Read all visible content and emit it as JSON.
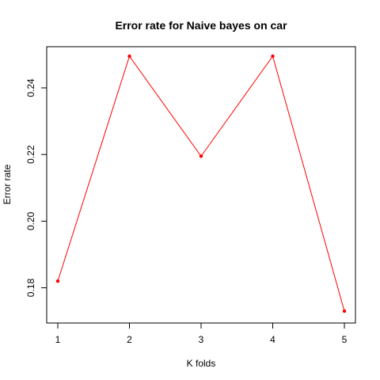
{
  "chart_data": {
    "type": "line",
    "title": "Error rate for Naive bayes on car",
    "xlabel": "K folds",
    "ylabel": "Error rate",
    "x": [
      1,
      2,
      3,
      4,
      5
    ],
    "x_ticks": [
      "1",
      "2",
      "3",
      "4",
      "5"
    ],
    "y_ticks": [
      "0.18",
      "0.20",
      "0.22",
      "0.24"
    ],
    "y_tick_values": [
      0.18,
      0.2,
      0.22,
      0.24
    ],
    "xlim": [
      1,
      5
    ],
    "ylim": [
      0.173,
      0.2495
    ],
    "grid": false,
    "series": [
      {
        "values": [
          0.182,
          0.2495,
          0.2195,
          0.2495,
          0.173
        ],
        "color": "#ff0000"
      }
    ]
  }
}
